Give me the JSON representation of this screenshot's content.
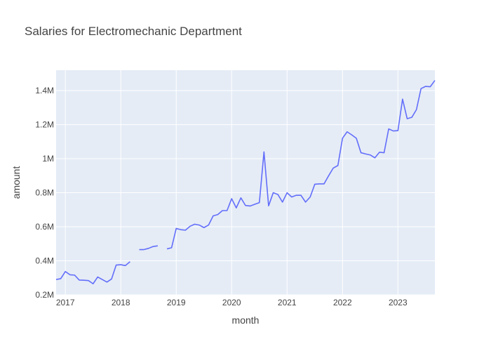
{
  "chart_data": {
    "type": "line",
    "title": "Salaries for Electromechanic Department",
    "xlabel": "month",
    "ylabel": "amount",
    "ylim": [
      0.2,
      1.52
    ],
    "y_unit": "M",
    "y_ticks": [
      {
        "value": 0.2,
        "label": "0.2M"
      },
      {
        "value": 0.4,
        "label": "0.4M"
      },
      {
        "value": 0.6,
        "label": "0.6M"
      },
      {
        "value": 0.8,
        "label": "0.8M"
      },
      {
        "value": 1.0,
        "label": "1M"
      },
      {
        "value": 1.2,
        "label": "1.2M"
      },
      {
        "value": 1.4,
        "label": "1.4M"
      }
    ],
    "x_ticks": [
      "2017",
      "2018",
      "2019",
      "2020",
      "2021",
      "2022",
      "2023"
    ],
    "xlim": [
      "2016-11",
      "2023-09"
    ],
    "series": [
      {
        "color": "#636efa",
        "points": [
          [
            "2016-11",
            0.29
          ],
          [
            "2016-12",
            0.295
          ],
          [
            "2017-01",
            0.337
          ],
          [
            "2017-02",
            0.318
          ],
          [
            "2017-03",
            0.316
          ],
          [
            "2017-04",
            0.287
          ],
          [
            "2017-05",
            0.286
          ],
          [
            "2017-06",
            0.284
          ],
          [
            "2017-07",
            0.265
          ],
          [
            "2017-08",
            0.305
          ],
          [
            "2017-09",
            0.29
          ],
          [
            "2017-10",
            0.275
          ],
          [
            "2017-11",
            0.293
          ],
          [
            "2017-12",
            0.375
          ],
          [
            "2018-01",
            0.377
          ],
          [
            "2018-02",
            0.372
          ],
          [
            "2018-03",
            0.395
          ],
          [
            "2018-04",
            null
          ],
          [
            "2018-05",
            0.466
          ],
          [
            "2018-06",
            0.466
          ],
          [
            "2018-07",
            0.473
          ],
          [
            "2018-08",
            0.484
          ],
          [
            "2018-09",
            0.488
          ],
          [
            "2018-10",
            null
          ],
          [
            "2018-11",
            0.47
          ],
          [
            "2018-12",
            0.477
          ],
          [
            "2019-01",
            0.59
          ],
          [
            "2019-02",
            0.583
          ],
          [
            "2019-03",
            0.58
          ],
          [
            "2019-04",
            0.603
          ],
          [
            "2019-05",
            0.615
          ],
          [
            "2019-06",
            0.61
          ],
          [
            "2019-07",
            0.595
          ],
          [
            "2019-08",
            0.61
          ],
          [
            "2019-09",
            0.664
          ],
          [
            "2019-10",
            0.672
          ],
          [
            "2019-11",
            0.695
          ],
          [
            "2019-12",
            0.695
          ],
          [
            "2020-01",
            0.765
          ],
          [
            "2020-02",
            0.711
          ],
          [
            "2020-03",
            0.77
          ],
          [
            "2020-04",
            0.725
          ],
          [
            "2020-05",
            0.722
          ],
          [
            "2020-06",
            0.732
          ],
          [
            "2020-07",
            0.742
          ],
          [
            "2020-08",
            1.04
          ],
          [
            "2020-09",
            0.723
          ],
          [
            "2020-10",
            0.8
          ],
          [
            "2020-11",
            0.79
          ],
          [
            "2020-12",
            0.745
          ],
          [
            "2021-01",
            0.8
          ],
          [
            "2021-02",
            0.775
          ],
          [
            "2021-03",
            0.785
          ],
          [
            "2021-04",
            0.785
          ],
          [
            "2021-05",
            0.745
          ],
          [
            "2021-06",
            0.775
          ],
          [
            "2021-07",
            0.85
          ],
          [
            "2021-08",
            0.852
          ],
          [
            "2021-09",
            0.852
          ],
          [
            "2021-10",
            0.9
          ],
          [
            "2021-11",
            0.945
          ],
          [
            "2021-12",
            0.96
          ],
          [
            "2022-01",
            1.12
          ],
          [
            "2022-02",
            1.158
          ],
          [
            "2022-03",
            1.14
          ],
          [
            "2022-04",
            1.12
          ],
          [
            "2022-05",
            1.035
          ],
          [
            "2022-06",
            1.028
          ],
          [
            "2022-07",
            1.022
          ],
          [
            "2022-08",
            1.005
          ],
          [
            "2022-09",
            1.038
          ],
          [
            "2022-10",
            1.035
          ],
          [
            "2022-11",
            1.175
          ],
          [
            "2022-12",
            1.163
          ],
          [
            "2023-01",
            1.165
          ],
          [
            "2023-02",
            1.35
          ],
          [
            "2023-03",
            1.235
          ],
          [
            "2023-04",
            1.243
          ],
          [
            "2023-05",
            1.288
          ],
          [
            "2023-06",
            1.412
          ],
          [
            "2023-07",
            1.425
          ],
          [
            "2023-08",
            1.423
          ],
          [
            "2023-09",
            1.46
          ]
        ]
      }
    ]
  }
}
